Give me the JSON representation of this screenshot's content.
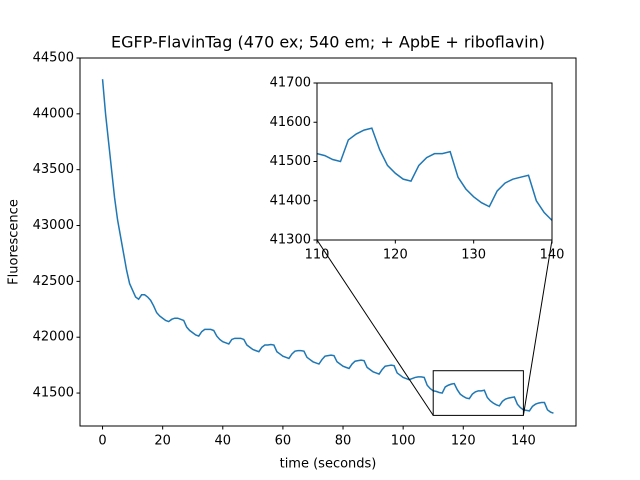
{
  "chart_data": [
    {
      "type": "line",
      "title": "EGFP-FlavinTag (470 ex; 540 em; + ApbE + riboflavin)",
      "xlabel": "time (seconds)",
      "ylabel": "Fluorescence",
      "color": "#1f77b4",
      "xlim": [
        -7.5,
        157.5
      ],
      "ylim": [
        41205,
        44500
      ],
      "xticks": [
        0,
        20,
        40,
        60,
        80,
        100,
        120,
        140
      ],
      "yticks": [
        41500,
        42000,
        42500,
        43000,
        43500,
        44000,
        44500
      ],
      "x": [
        0,
        1,
        2,
        3,
        4,
        5,
        6,
        7,
        8,
        9,
        10,
        11,
        12,
        13,
        14,
        15,
        16,
        17,
        18,
        19,
        20,
        21,
        22,
        23,
        24,
        25,
        26,
        27,
        28,
        29,
        30,
        31,
        32,
        33,
        34,
        35,
        36,
        37,
        38,
        39,
        40,
        41,
        42,
        43,
        44,
        45,
        46,
        47,
        48,
        49,
        50,
        51,
        52,
        53,
        54,
        55,
        56,
        57,
        58,
        59,
        60,
        61,
        62,
        63,
        64,
        65,
        66,
        67,
        68,
        69,
        70,
        71,
        72,
        73,
        74,
        75,
        76,
        77,
        78,
        79,
        80,
        81,
        82,
        83,
        84,
        85,
        86,
        87,
        88,
        89,
        90,
        91,
        92,
        93,
        94,
        95,
        96,
        97,
        98,
        99,
        100,
        101,
        102,
        103,
        104,
        105,
        106,
        107,
        108,
        109,
        110,
        111,
        112,
        113,
        114,
        115,
        116,
        117,
        118,
        119,
        120,
        121,
        122,
        123,
        124,
        125,
        126,
        127,
        128,
        129,
        130,
        131,
        132,
        133,
        134,
        135,
        136,
        137,
        138,
        139,
        140,
        141,
        142,
        143,
        144,
        145,
        146,
        147,
        148,
        149,
        150
      ],
      "values": [
        44310,
        44000,
        43750,
        43500,
        43250,
        43050,
        42900,
        42750,
        42600,
        42480,
        42420,
        42360,
        42340,
        42380,
        42380,
        42360,
        42330,
        42280,
        42220,
        42190,
        42170,
        42150,
        42140,
        42160,
        42170,
        42170,
        42160,
        42150,
        42090,
        42060,
        42040,
        42020,
        42010,
        42050,
        42070,
        42070,
        42070,
        42060,
        42010,
        41980,
        41960,
        41950,
        41940,
        41980,
        41990,
        41990,
        41990,
        41980,
        41930,
        41910,
        41890,
        41880,
        41870,
        41910,
        41930,
        41930,
        41935,
        41930,
        41870,
        41850,
        41830,
        41820,
        41810,
        41850,
        41875,
        41880,
        41880,
        41875,
        41820,
        41800,
        41780,
        41770,
        41760,
        41800,
        41830,
        41835,
        41840,
        41835,
        41780,
        41760,
        41740,
        41730,
        41720,
        41760,
        41785,
        41790,
        41795,
        41790,
        41730,
        41710,
        41690,
        41680,
        41670,
        41710,
        41740,
        41745,
        41750,
        41745,
        41680,
        41660,
        41640,
        41630,
        41620,
        41630,
        41640,
        41645,
        41645,
        41640,
        41570,
        41540,
        41520,
        41515,
        41505,
        41500,
        41555,
        41570,
        41580,
        41585,
        41530,
        41490,
        41470,
        41455,
        41450,
        41490,
        41510,
        41520,
        41520,
        41525,
        41460,
        41430,
        41410,
        41395,
        41385,
        41425,
        41445,
        41455,
        41460,
        41465,
        41400,
        41370,
        41350,
        41345,
        41340,
        41380,
        41400,
        41410,
        41415,
        41415,
        41350,
        41330,
        41320
      ]
    },
    {
      "type": "line",
      "color": "#1f77b4",
      "xlim": [
        110,
        140
      ],
      "ylim": [
        41300,
        41700
      ],
      "xticks": [
        110,
        120,
        130,
        140
      ],
      "yticks": [
        41300,
        41400,
        41500,
        41600,
        41700
      ],
      "x": [
        110,
        111,
        112,
        113,
        114,
        115,
        116,
        117,
        118,
        119,
        120,
        121,
        122,
        123,
        124,
        125,
        126,
        127,
        128,
        129,
        130,
        131,
        132,
        133,
        134,
        135,
        136,
        137,
        138,
        139,
        140
      ],
      "values": [
        41520,
        41515,
        41505,
        41500,
        41555,
        41570,
        41580,
        41585,
        41530,
        41490,
        41470,
        41455,
        41450,
        41490,
        41510,
        41520,
        41520,
        41525,
        41460,
        41430,
        41410,
        41395,
        41385,
        41425,
        41445,
        41455,
        41460,
        41465,
        41400,
        41370,
        41350
      ]
    }
  ]
}
